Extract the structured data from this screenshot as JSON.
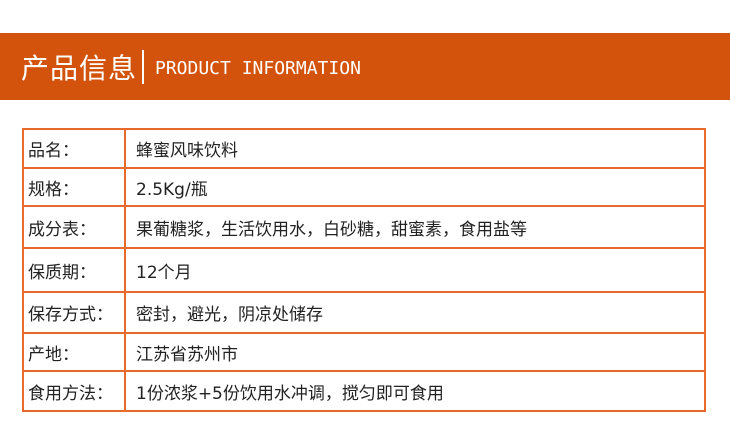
{
  "banner": {
    "title_cn": "产品信息",
    "title_en": "PRODUCT INFORMATION",
    "color": "#d4530c"
  },
  "rows": [
    {
      "label": "品名：",
      "value": "蜂蜜风味饮料"
    },
    {
      "label": "规格：",
      "value": "2.5Kg/瓶"
    },
    {
      "label": "成分表：",
      "value": "果葡糖浆，生活饮用水，白砂糖，甜蜜素，食用盐等"
    },
    {
      "label": "保质期：",
      "value": "12个月"
    },
    {
      "label": "保存方式：",
      "value": "密封，避光，阴凉处储存"
    },
    {
      "label": "产地：",
      "value": "江苏省苏州市"
    },
    {
      "label": "食用方法：",
      "value": "1份浓浆+5份饮用水冲调，搅匀即可食用"
    }
  ]
}
